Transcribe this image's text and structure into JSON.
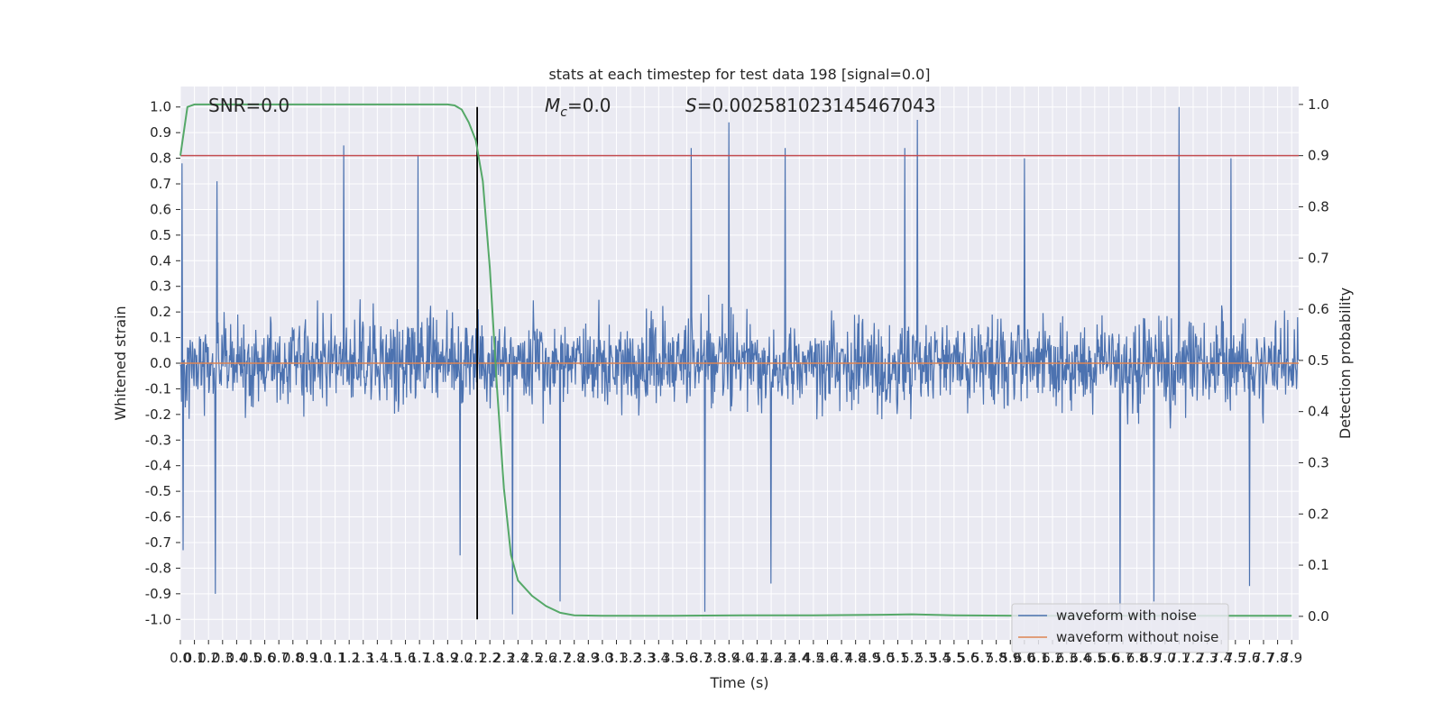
{
  "chart_data": {
    "type": "line",
    "title": "stats at each timestep for test data 198 [signal=0.0]",
    "xlabel": "Time (s)",
    "ylabel": "Whitened strain",
    "y2label": "Detection probability",
    "xlim": [
      0.0,
      7.95
    ],
    "ylim": [
      -1.08,
      1.08
    ],
    "y2lim": [
      -0.046,
      1.035
    ],
    "x_ticks": [
      0.0,
      0.1,
      0.2,
      0.3,
      0.4,
      0.5,
      0.6,
      0.7,
      0.8,
      0.9,
      1.0,
      1.1,
      1.2,
      1.3,
      1.4,
      1.5,
      1.6,
      1.7,
      1.8,
      1.9,
      2.0,
      2.1,
      2.2,
      2.3,
      2.4,
      2.5,
      2.6,
      2.7,
      2.8,
      2.9,
      3.0,
      3.1,
      3.2,
      3.3,
      3.4,
      3.5,
      3.6,
      3.7,
      3.8,
      3.9,
      4.0,
      4.1,
      4.2,
      4.3,
      4.4,
      4.5,
      4.6,
      4.7,
      4.8,
      4.9,
      5.0,
      5.1,
      5.2,
      5.3,
      5.4,
      5.5,
      5.6,
      5.7,
      5.8,
      5.9,
      6.0,
      6.1,
      6.2,
      6.3,
      6.4,
      6.5,
      6.6,
      6.7,
      6.8,
      6.9,
      7.0,
      7.1,
      7.2,
      7.3,
      7.4,
      7.5,
      7.6,
      7.7,
      7.8,
      7.9
    ],
    "y_ticks": [
      -1.0,
      -0.9,
      -0.8,
      -0.7,
      -0.6,
      -0.5,
      -0.4,
      -0.3,
      -0.2,
      -0.1,
      0.0,
      0.1,
      0.2,
      0.3,
      0.4,
      0.5,
      0.6,
      0.7,
      0.8,
      0.9,
      1.0
    ],
    "y2_ticks": [
      0.0,
      0.1,
      0.2,
      0.3,
      0.4,
      0.5,
      0.6,
      0.7,
      0.8,
      0.9,
      1.0
    ],
    "grid": true,
    "annotations": [
      {
        "id": "snr",
        "text": "SNR=0.0"
      },
      {
        "id": "mc",
        "text": "M_c=0.0",
        "main": "M",
        "sub": "c",
        "rest": "=0.0"
      },
      {
        "id": "s",
        "text": "S=0.002581023145467043",
        "main": "S",
        "rest": "=0.002581023145467043"
      }
    ],
    "threshold": {
      "axis": "y2",
      "value": 0.9,
      "color": "#c44e52"
    },
    "vertical_marker": {
      "x": 2.11,
      "ymin": -1.0,
      "ymax": 1.0,
      "color": "#000000"
    },
    "series": [
      {
        "name": "waveform with noise",
        "color": "#4c72b0",
        "axis": "y",
        "kind": "noise",
        "n": 2048,
        "seed": 198,
        "spikes": [
          [
            0.01,
            0.78
          ],
          [
            0.02,
            -0.73
          ],
          [
            0.25,
            -0.9
          ],
          [
            0.26,
            0.71
          ],
          [
            1.16,
            0.85
          ],
          [
            1.69,
            0.81
          ],
          [
            1.99,
            -0.75
          ],
          [
            2.36,
            -0.98
          ],
          [
            2.7,
            -0.93
          ],
          [
            3.63,
            0.84
          ],
          [
            3.73,
            -0.97
          ],
          [
            3.9,
            0.94
          ],
          [
            4.2,
            -0.86
          ],
          [
            4.3,
            0.84
          ],
          [
            5.15,
            0.84
          ],
          [
            5.24,
            0.95
          ],
          [
            6.0,
            0.8
          ],
          [
            6.68,
            -0.98
          ],
          [
            6.92,
            -0.93
          ],
          [
            7.1,
            1.0
          ],
          [
            7.47,
            0.8
          ],
          [
            7.6,
            -0.87
          ]
        ]
      },
      {
        "name": "waveform without noise",
        "color": "#dd8452",
        "axis": "y",
        "kind": "constant",
        "value": 0.0
      },
      {
        "name": "",
        "color": "#55a868",
        "axis": "y2",
        "kind": "line",
        "x": [
          0.0,
          0.05,
          0.1,
          0.3,
          0.6,
          1.0,
          1.5,
          1.9,
          1.95,
          2.0,
          2.05,
          2.1,
          2.15,
          2.2,
          2.25,
          2.3,
          2.35,
          2.4,
          2.5,
          2.6,
          2.7,
          2.8,
          3.0,
          3.5,
          4.0,
          4.5,
          5.0,
          5.2,
          5.5,
          6.0,
          6.5,
          7.0,
          7.5,
          7.9
        ],
        "y": [
          0.9,
          0.995,
          1.0,
          1.0,
          1.0,
          1.0,
          1.0,
          1.0,
          0.998,
          0.99,
          0.965,
          0.93,
          0.85,
          0.68,
          0.45,
          0.25,
          0.12,
          0.07,
          0.04,
          0.02,
          0.007,
          0.002,
          0.001,
          0.001,
          0.002,
          0.002,
          0.003,
          0.004,
          0.002,
          0.001,
          0.001,
          0.001,
          0.001,
          0.001
        ]
      }
    ]
  }
}
